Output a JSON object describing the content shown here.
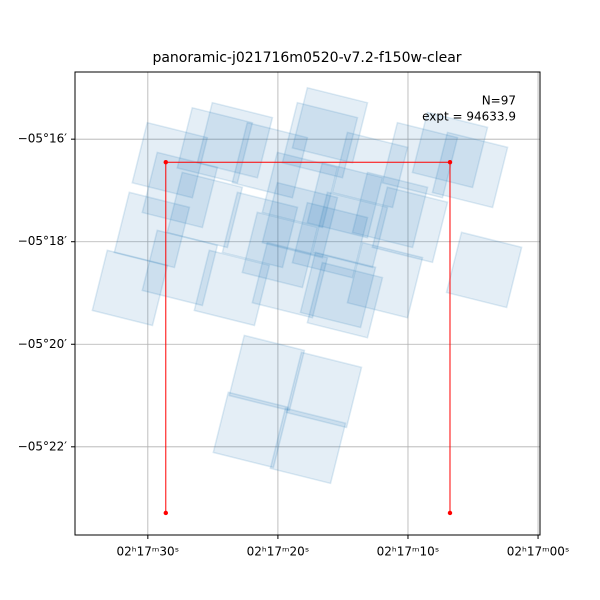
{
  "chart_data": {
    "type": "footprint",
    "title": "panoramic-j021716m0520-v7.2-f150w-clear",
    "annotations": [
      "N=97",
      "expt = 94633.9"
    ],
    "xlim": [
      35.6,
      -0.15
    ],
    "ylim": [
      -23.72,
      -14.69
    ],
    "xticks": [
      {
        "value": 30,
        "label": "02ʰ17ᵐ30ˢ"
      },
      {
        "value": 20,
        "label": "02ʰ17ᵐ20ˢ"
      },
      {
        "value": 10,
        "label": "02ʰ17ᵐ10ˢ"
      },
      {
        "value": 0,
        "label": "02ʰ17ᵐ00ˢ"
      }
    ],
    "yticks": [
      {
        "value": -16,
        "label": "−05°16′"
      },
      {
        "value": -18,
        "label": "−05°18′"
      },
      {
        "value": -20,
        "label": "−05°20′"
      },
      {
        "value": -22,
        "label": "−05°22′"
      }
    ],
    "grid": true,
    "footprints": {
      "color": "#1f77b4",
      "x": [
        20.85,
        16.46,
        22.08,
        17.69,
        4.15,
        31.38,
        27.54,
        23.54,
        29.69,
        19.08,
        15.38,
        11.77,
        14.85,
        19.85,
        16,
        25.62,
        21.38,
        18.31,
        14.46,
        9.85,
        28.31,
        24.85,
        20.62,
        16.77,
        12.92,
        9.08,
        5.23,
        18.31,
        14.85,
        11.38,
        27.54,
        16,
        6.77,
        23.31
      ],
      "y": [
        -20.56,
        -20.89,
        -21.67,
        -21.98,
        -18.55,
        -18.9,
        -18.51,
        -18.9,
        -17.77,
        -18.75,
        -18.94,
        -18.75,
        -19.14,
        -18.16,
        -17.97,
        -17.38,
        -17.77,
        -17.58,
        -17.77,
        -17.67,
        -16.41,
        -16.12,
        -16.41,
        -16.02,
        -16.6,
        -16.41,
        -16.6,
        -16.99,
        -17.19,
        -17.38,
        -16.99,
        -15.73,
        -16.21,
        -16.02
      ]
    },
    "outline": {
      "color": "red",
      "x": [
        28.62,
        28.62,
        6.77,
        6.77
      ],
      "y": [
        -23.29,
        -16.45,
        -16.45,
        -23.29
      ]
    }
  }
}
